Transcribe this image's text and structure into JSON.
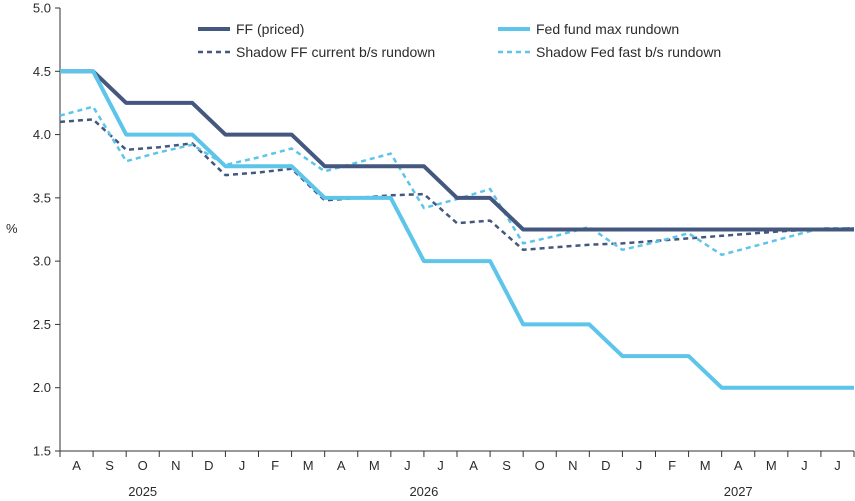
{
  "chart_data": {
    "type": "line",
    "title": "",
    "xlabel": "",
    "ylabel": "%",
    "ylim": [
      1.5,
      5.0
    ],
    "yticks": [
      "1.5",
      "2.0",
      "2.5",
      "3.0",
      "3.5",
      "4.0",
      "4.5",
      "5.0"
    ],
    "grid": false,
    "legend_position": "top",
    "months": [
      "A",
      "S",
      "O",
      "N",
      "D",
      "J",
      "F",
      "M",
      "A",
      "M",
      "J",
      "J",
      "A",
      "S",
      "O",
      "N",
      "D",
      "J",
      "F",
      "M",
      "A",
      "M",
      "J",
      "J"
    ],
    "years": [
      {
        "label": "2025",
        "center_index": 2
      },
      {
        "label": "2026",
        "center_index": 10.5
      },
      {
        "label": "2027",
        "center_index": 20
      }
    ],
    "series": [
      {
        "name": "FF (priced)",
        "color": "#44577f",
        "style": "solid",
        "points": [
          [
            0,
            4.5
          ],
          [
            1,
            4.5
          ],
          [
            2,
            4.25
          ],
          [
            3,
            4.25
          ],
          [
            4,
            4.25
          ],
          [
            5,
            4.0
          ],
          [
            6,
            4.0
          ],
          [
            7,
            4.0
          ],
          [
            8,
            3.75
          ],
          [
            9,
            3.75
          ],
          [
            10,
            3.75
          ],
          [
            11,
            3.75
          ],
          [
            12,
            3.5
          ],
          [
            13,
            3.5
          ],
          [
            14,
            3.25
          ],
          [
            15,
            3.25
          ],
          [
            16,
            3.25
          ],
          [
            17,
            3.25
          ],
          [
            18,
            3.25
          ],
          [
            19,
            3.25
          ],
          [
            20,
            3.25
          ],
          [
            21,
            3.25
          ],
          [
            22,
            3.25
          ],
          [
            23,
            3.25
          ],
          [
            24,
            3.25
          ]
        ]
      },
      {
        "name": "Fed fund max rundown",
        "color": "#5dc4ea",
        "style": "solid",
        "points": [
          [
            0,
            4.5
          ],
          [
            1,
            4.5
          ],
          [
            2,
            4.0
          ],
          [
            3,
            4.0
          ],
          [
            4,
            4.0
          ],
          [
            5,
            3.75
          ],
          [
            6,
            3.75
          ],
          [
            7,
            3.75
          ],
          [
            8,
            3.5
          ],
          [
            9,
            3.5
          ],
          [
            10,
            3.5
          ],
          [
            11,
            3.0
          ],
          [
            12,
            3.0
          ],
          [
            13,
            3.0
          ],
          [
            14,
            2.5
          ],
          [
            15,
            2.5
          ],
          [
            16,
            2.5
          ],
          [
            17,
            2.25
          ],
          [
            18,
            2.25
          ],
          [
            19,
            2.25
          ],
          [
            20,
            2.0
          ],
          [
            21,
            2.0
          ],
          [
            22,
            2.0
          ],
          [
            23,
            2.0
          ],
          [
            24,
            2.0
          ]
        ]
      },
      {
        "name": "Shadow FF current b/s rundown",
        "color": "#44577f",
        "style": "dashed",
        "points": [
          [
            0,
            4.1
          ],
          [
            1,
            4.12
          ],
          [
            2,
            3.88
          ],
          [
            3,
            3.9
          ],
          [
            4,
            3.93
          ],
          [
            5,
            3.68
          ],
          [
            6,
            3.7
          ],
          [
            7,
            3.73
          ],
          [
            8,
            3.48
          ],
          [
            9,
            3.5
          ],
          [
            10,
            3.52
          ],
          [
            11,
            3.53
          ],
          [
            12,
            3.3
          ],
          [
            13,
            3.32
          ],
          [
            14,
            3.09
          ],
          [
            15,
            3.11
          ],
          [
            16,
            3.13
          ],
          [
            17,
            3.14
          ],
          [
            18,
            3.16
          ],
          [
            19,
            3.18
          ],
          [
            20,
            3.2
          ],
          [
            21,
            3.22
          ],
          [
            22,
            3.24
          ],
          [
            23,
            3.25
          ],
          [
            24,
            3.26
          ]
        ]
      },
      {
        "name": "Shadow Fed fast b/s rundown",
        "color": "#5dc4ea",
        "style": "dashed",
        "points": [
          [
            0,
            4.15
          ],
          [
            1,
            4.22
          ],
          [
            2,
            3.79
          ],
          [
            3,
            3.86
          ],
          [
            4,
            3.92
          ],
          [
            5,
            3.76
          ],
          [
            6,
            3.82
          ],
          [
            7,
            3.89
          ],
          [
            8,
            3.71
          ],
          [
            9,
            3.78
          ],
          [
            10,
            3.85
          ],
          [
            11,
            3.42
          ],
          [
            12,
            3.49
          ],
          [
            13,
            3.57
          ],
          [
            14,
            3.14
          ],
          [
            15,
            3.2
          ],
          [
            16,
            3.27
          ],
          [
            17,
            3.09
          ],
          [
            18,
            3.15
          ],
          [
            19,
            3.22
          ],
          [
            20,
            3.05
          ],
          [
            21,
            3.12
          ],
          [
            22,
            3.19
          ],
          [
            23,
            3.26
          ],
          [
            24,
            3.26
          ]
        ]
      }
    ]
  }
}
